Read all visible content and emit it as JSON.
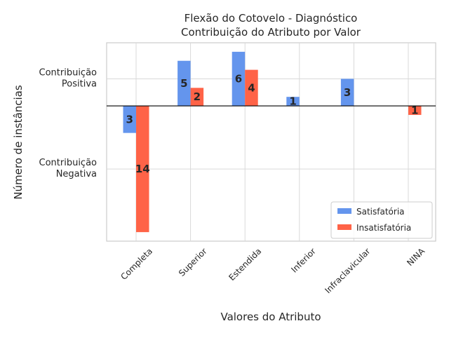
{
  "chart_data": {
    "type": "bar",
    "title": "Flexão do Cotovelo - Diagnóstico",
    "subtitle": "Contribuição do Atributo por Valor",
    "xlabel": "Valores do Atributo",
    "ylabel": "Número de instâncias",
    "categories": [
      "Completa",
      "Superior",
      "Estendida",
      "Inferior",
      "Infraclavicular",
      "NINA"
    ],
    "series": [
      {
        "name": "Satisfatória",
        "color": "#6495ED",
        "values": [
          -3,
          5,
          6,
          1,
          3,
          0
        ]
      },
      {
        "name": "Insatisfatória",
        "color": "#FF6347",
        "values": [
          -14,
          2,
          4,
          0,
          0,
          -1
        ]
      }
    ],
    "value_labels": {
      "Satisfatória": [
        "3",
        "5",
        "6",
        "1",
        "3",
        ""
      ],
      "Insatisfatória": [
        "14",
        "2",
        "4",
        "",
        "",
        "1"
      ]
    },
    "y_tick_labels": [
      {
        "value": 3,
        "lines": [
          "Contribuição",
          "Positiva"
        ]
      },
      {
        "value": -7,
        "lines": [
          "Contribuição",
          "Negativa"
        ]
      }
    ],
    "ylim": [
      -15,
      7
    ],
    "grid": true,
    "legend": "lower-right"
  }
}
